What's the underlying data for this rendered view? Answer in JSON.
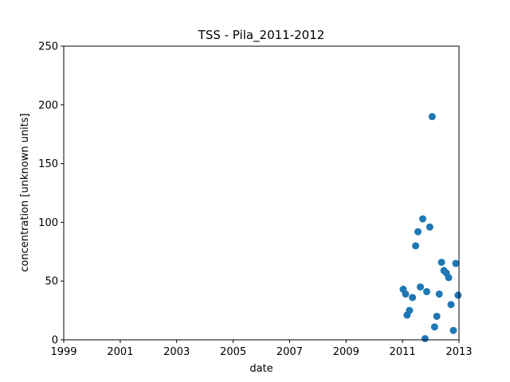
{
  "chart_data": {
    "type": "scatter",
    "title": "TSS - Pila_2011-2012",
    "xlabel": "date",
    "ylabel": "concentration [unknown units]",
    "xlim": [
      "1999-01-01",
      "2013-01-01"
    ],
    "ylim": [
      0,
      250
    ],
    "x_ticks": [
      "1999",
      "2001",
      "2003",
      "2005",
      "2007",
      "2009",
      "2011",
      "2013"
    ],
    "y_ticks": [
      "0",
      "50",
      "100",
      "150",
      "200",
      "250"
    ],
    "grid": false,
    "marker_color": "#1f77b4",
    "points": [
      {
        "x": "2011-01-10",
        "y": 43
      },
      {
        "x": "2011-02-10",
        "y": 39
      },
      {
        "x": "2011-03-01",
        "y": 21
      },
      {
        "x": "2011-04-01",
        "y": 25
      },
      {
        "x": "2011-05-10",
        "y": 36
      },
      {
        "x": "2011-06-20",
        "y": 80
      },
      {
        "x": "2011-07-20",
        "y": 92
      },
      {
        "x": "2011-08-20",
        "y": 45
      },
      {
        "x": "2011-09-20",
        "y": 103
      },
      {
        "x": "2011-10-20",
        "y": 1
      },
      {
        "x": "2011-11-10",
        "y": 41
      },
      {
        "x": "2011-12-20",
        "y": 96
      },
      {
        "x": "2012-01-20",
        "y": 190
      },
      {
        "x": "2012-02-20",
        "y": 11
      },
      {
        "x": "2012-03-20",
        "y": 20
      },
      {
        "x": "2012-04-20",
        "y": 39
      },
      {
        "x": "2012-05-20",
        "y": 66
      },
      {
        "x": "2012-06-20",
        "y": 59
      },
      {
        "x": "2012-07-20",
        "y": 57
      },
      {
        "x": "2012-08-20",
        "y": 53
      },
      {
        "x": "2012-09-20",
        "y": 30
      },
      {
        "x": "2012-10-20",
        "y": 8
      },
      {
        "x": "2012-11-20",
        "y": 65
      },
      {
        "x": "2012-12-20",
        "y": 38
      }
    ]
  }
}
